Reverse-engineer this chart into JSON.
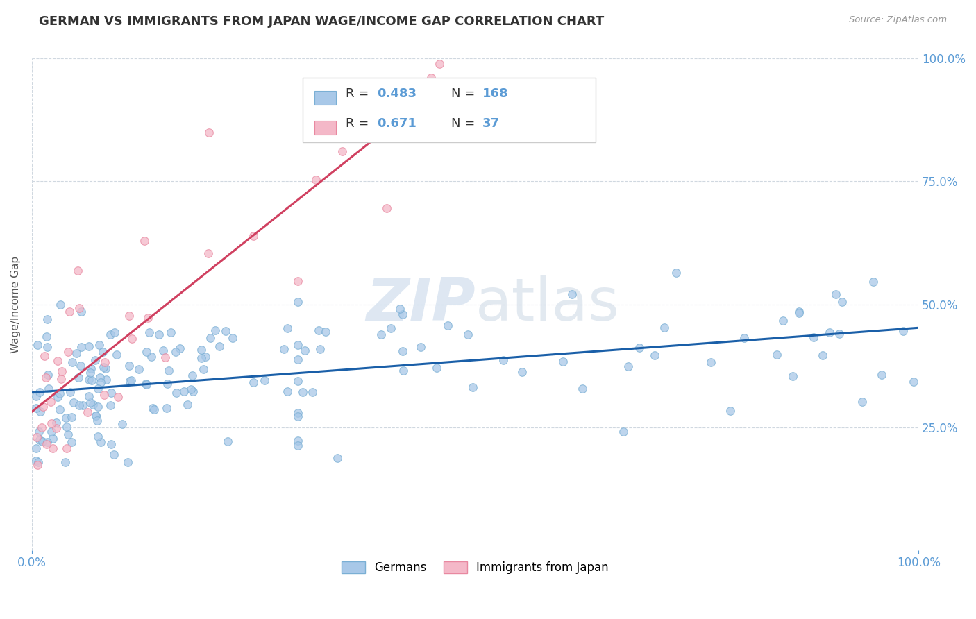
{
  "title": "GERMAN VS IMMIGRANTS FROM JAPAN WAGE/INCOME GAP CORRELATION CHART",
  "source": "Source: ZipAtlas.com",
  "ylabel": "Wage/Income Gap",
  "watermark_zip": "ZIP",
  "watermark_atlas": "atlas",
  "blue_R": 0.483,
  "blue_N": 168,
  "pink_R": 0.671,
  "pink_N": 37,
  "blue_color": "#a8c8e8",
  "blue_edge_color": "#7aafd4",
  "pink_color": "#f4b8c8",
  "pink_edge_color": "#e888a0",
  "blue_line_color": "#1a5fa8",
  "pink_line_color": "#d04060",
  "x_range": [
    0,
    100
  ],
  "y_range": [
    0,
    100
  ],
  "y_ticks": [
    25,
    50,
    75,
    100
  ],
  "y_tick_labels": [
    "25.0%",
    "50.0%",
    "75.0%",
    "100.0%"
  ],
  "right_axis_color": "#5b9bd5",
  "title_fontsize": 13,
  "legend_label1": "Germans",
  "legend_label2": "Immigrants from Japan"
}
